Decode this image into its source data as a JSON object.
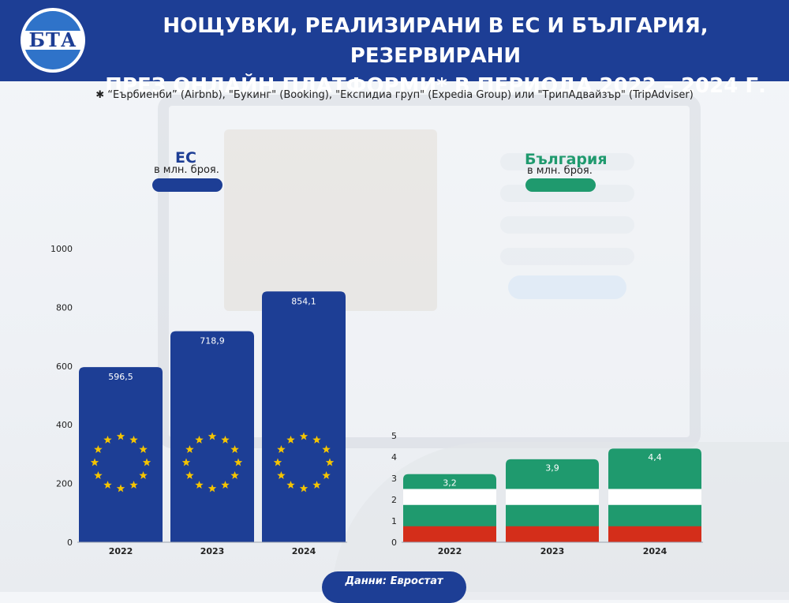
{
  "header": {
    "logo_text": "БТА",
    "title_line1": "НОЩУВКИ, РЕАЛИЗИРАНИ В ЕС И БЪЛГАРИЯ, РЕЗЕРВИРАНИ",
    "title_line2": "ПРЕЗ ОНЛАЙН ПЛАТФОРМИ* В ПЕРИОДА 2022 – 2024 Г."
  },
  "footnote": "✱ “Еърбиенби” (Airbnb), \"Букинг\" (Booking), \"Експидиа груп\" (Expedia Group) или \"ТрипАдвайзър\" (TripAdviser)",
  "colors": {
    "eu_blue": "#1d3e95",
    "bg_green": "#1f9a6e",
    "bg_red": "#d42e1a",
    "eu_star": "#f5c400"
  },
  "chart_data": [
    {
      "type": "bar",
      "title": "ЕС",
      "subtitle": "в млн. броя.",
      "categories": [
        "2022",
        "2023",
        "2024"
      ],
      "values": [
        596.5,
        718.9,
        854.1
      ],
      "value_labels": [
        "596,5",
        "718,9",
        "854,1"
      ],
      "yticks": [
        "0",
        "200",
        "400",
        "600",
        "800",
        "1000"
      ],
      "ylim": [
        0,
        1000
      ],
      "grid": false
    },
    {
      "type": "bar",
      "title": "България",
      "subtitle": "в млн. броя.",
      "categories": [
        "2022",
        "2023",
        "2024"
      ],
      "values": [
        3.2,
        3.9,
        4.4
      ],
      "value_labels": [
        "3,2",
        "3,9",
        "4,4"
      ],
      "yticks": [
        "0",
        "1",
        "2",
        "3",
        "4",
        "5"
      ],
      "ylim": [
        0,
        5
      ],
      "grid": false
    }
  ],
  "source": "Данни: Евростат"
}
